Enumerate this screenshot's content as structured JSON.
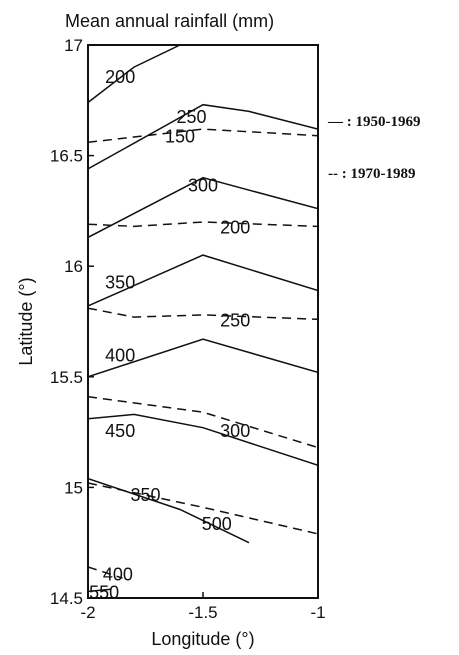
{
  "chart_data": {
    "type": "line",
    "title": "Mean annual rainfall (mm)",
    "xlabel": "Longitude (°)",
    "ylabel": "Latitude (°)",
    "xlim": [
      -2,
      -1
    ],
    "ylim": [
      14.5,
      17
    ],
    "x_ticks": [
      "-2",
      "-1.5",
      "-1"
    ],
    "y_ticks": [
      "14.5",
      "15",
      "15.5",
      "16",
      "16.5",
      "17"
    ],
    "legend": [
      {
        "style": "solid",
        "label": "— : 1950-1969"
      },
      {
        "style": "dashed",
        "label": "-- : 1970-1989"
      }
    ],
    "series": [
      {
        "period": "1950-1969",
        "style": "solid",
        "contours": [
          {
            "label": "200",
            "points": [
              [
                -2,
                16.74
              ],
              [
                -1.8,
                16.9
              ],
              [
                -1.6,
                17.0
              ]
            ],
            "label_at": [
              -1.86,
              16.86
            ]
          },
          {
            "label": "250",
            "points": [
              [
                -2,
                16.44
              ],
              [
                -1.5,
                16.73
              ],
              [
                -1.3,
                16.7
              ],
              [
                -1,
                16.62
              ]
            ],
            "label_at": [
              -1.55,
              16.68
            ]
          },
          {
            "label": "300",
            "points": [
              [
                -2,
                16.13
              ],
              [
                -1.5,
                16.4
              ],
              [
                -1,
                16.26
              ]
            ],
            "label_at": [
              -1.5,
              16.37
            ]
          },
          {
            "label": "350",
            "points": [
              [
                -2,
                15.82
              ],
              [
                -1.5,
                16.05
              ],
              [
                -1,
                15.89
              ]
            ],
            "label_at": [
              -1.86,
              15.93
            ]
          },
          {
            "label": "400",
            "points": [
              [
                -2,
                15.5
              ],
              [
                -1.5,
                15.67
              ],
              [
                -1,
                15.52
              ]
            ],
            "label_at": [
              -1.86,
              15.6
            ]
          },
          {
            "label": "450",
            "points": [
              [
                -2,
                15.31
              ],
              [
                -1.8,
                15.33
              ],
              [
                -1.5,
                15.27
              ],
              [
                -1,
                15.1
              ]
            ],
            "label_at": [
              -1.86,
              15.26
            ]
          },
          {
            "label": "500",
            "points": [
              [
                -2,
                15.04
              ],
              [
                -1.6,
                14.9
              ],
              [
                -1.3,
                14.75
              ]
            ],
            "label_at": [
              -1.44,
              14.84
            ]
          },
          {
            "label": "550",
            "points": [
              [
                -2,
                14.53
              ],
              [
                -1.9,
                14.54
              ]
            ],
            "label_at": [
              -1.93,
              14.53
            ]
          }
        ]
      },
      {
        "period": "1970-1989",
        "style": "dashed",
        "contours": [
          {
            "label": "150",
            "points": [
              [
                -2,
                16.56
              ],
              [
                -1.5,
                16.62
              ],
              [
                -1,
                16.59
              ]
            ],
            "label_at": [
              -1.6,
              16.59
            ]
          },
          {
            "label": "200",
            "points": [
              [
                -2,
                16.19
              ],
              [
                -1.8,
                16.18
              ],
              [
                -1.5,
                16.2
              ],
              [
                -1,
                16.18
              ]
            ],
            "label_at": [
              -1.36,
              16.18
            ]
          },
          {
            "label": "250",
            "points": [
              [
                -2,
                15.81
              ],
              [
                -1.8,
                15.77
              ],
              [
                -1.5,
                15.78
              ],
              [
                -1,
                15.76
              ]
            ],
            "label_at": [
              -1.36,
              15.76
            ]
          },
          {
            "label": "300",
            "points": [
              [
                -2,
                15.41
              ],
              [
                -1.5,
                15.34
              ],
              [
                -1,
                15.18
              ]
            ],
            "label_at": [
              -1.36,
              15.26
            ]
          },
          {
            "label": "350",
            "points": [
              [
                -2,
                15.02
              ],
              [
                -1.5,
                14.91
              ],
              [
                -1,
                14.79
              ]
            ],
            "label_at": [
              -1.75,
              14.97
            ]
          },
          {
            "label": "400",
            "points": [
              [
                -2,
                14.64
              ],
              [
                -1.85,
                14.59
              ]
            ],
            "label_at": [
              -1.87,
              14.61
            ]
          }
        ]
      }
    ]
  }
}
